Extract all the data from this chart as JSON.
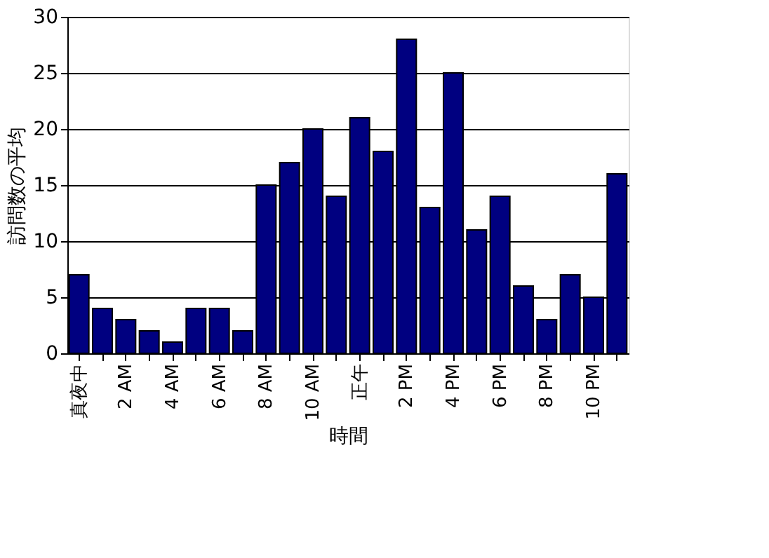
{
  "chart_data": {
    "type": "bar",
    "xlabel": "時間",
    "ylabel": "訪問数の平均",
    "categories": [
      "真夜中",
      null,
      "2 AM",
      null,
      "4 AM",
      null,
      "6 AM",
      null,
      "8 AM",
      null,
      "10 AM",
      null,
      "正午",
      null,
      "2 PM",
      null,
      "4 PM",
      null,
      "6 PM",
      null,
      "8 PM",
      null,
      "10 PM",
      null
    ],
    "values": [
      7,
      4,
      3,
      2,
      1,
      4,
      4,
      2,
      15,
      17,
      20,
      14,
      21,
      18,
      28,
      13,
      25,
      11,
      14,
      6,
      3,
      7,
      5,
      16
    ],
    "color": "#000080",
    "ylim": [
      0,
      30
    ],
    "yticks": [
      0,
      5,
      10,
      15,
      20,
      25,
      30
    ],
    "grid": "y"
  }
}
